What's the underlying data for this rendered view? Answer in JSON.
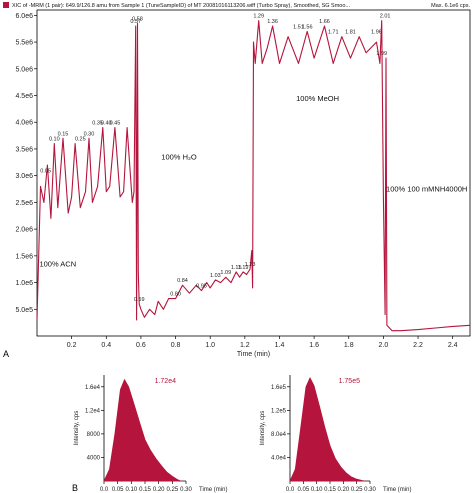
{
  "header": {
    "text": "XIC of -MRM (1 pair): 649.9/126.8 amu from Sample 1 (TuneSampleID) of MT 20081016113206.wiff (Turbo Spray), Smoothed, SG Smoo...",
    "max_text": "Max. 6.1e6 cps."
  },
  "panel_labels": {
    "a": "A",
    "b": "B"
  },
  "colors": {
    "trace": "#b5143c",
    "fill": "#b5143c",
    "axis": "#000000",
    "legend_square": "#b5143c"
  },
  "chart_data": [
    {
      "type": "line",
      "xlabel": "Time (min)",
      "ylabel": "",
      "xlim": [
        0,
        2.5
      ],
      "ylim": [
        0,
        6100000
      ],
      "x_ticks": [
        0.2,
        0.4,
        0.6,
        0.8,
        1.0,
        1.2,
        1.4,
        1.6,
        1.8,
        2.0,
        2.2,
        2.4
      ],
      "x_tick_labels": [
        "0.2",
        "0.4",
        "0.6",
        "0.8",
        "1.0",
        "1.2",
        "1.4",
        "1.6",
        "1.8",
        "2.0",
        "2.2",
        "2.4"
      ],
      "y_ticks": [
        500000,
        1000000,
        1500000,
        2000000,
        2500000,
        3000000,
        3500000,
        4000000,
        4500000,
        5000000,
        5500000,
        6000000
      ],
      "y_tick_labels": [
        "5.0e5",
        "1.0e6",
        "1.5e6",
        "2.0e6",
        "2.5e6",
        "3.0e6",
        "3.5e6",
        "4.0e6",
        "4.5e6",
        "5.0e6",
        "5.5e6",
        "6.0e6"
      ],
      "series": [
        {
          "x": [
            0.0,
            0.02,
            0.04,
            0.06,
            0.08,
            0.1,
            0.12,
            0.15,
            0.18,
            0.2,
            0.22,
            0.25,
            0.28,
            0.3,
            0.32,
            0.35,
            0.38,
            0.4,
            0.42,
            0.45,
            0.48,
            0.5,
            0.52,
            0.55,
            0.56,
            0.57,
            0.575,
            0.58,
            0.585,
            0.59,
            0.6,
            0.62,
            0.65,
            0.68,
            0.7,
            0.73,
            0.76,
            0.8,
            0.84,
            0.88,
            0.92,
            0.95,
            0.98,
            1.0,
            1.03,
            1.06,
            1.09,
            1.12,
            1.15,
            1.17,
            1.19,
            1.21,
            1.23,
            1.24,
            1.245,
            1.25,
            1.26,
            1.28,
            1.3,
            1.33,
            1.36,
            1.4,
            1.45,
            1.51,
            1.56,
            1.6,
            1.66,
            1.71,
            1.76,
            1.81,
            1.86,
            1.9,
            1.96,
            1.98,
            1.99,
            2.0,
            2.01,
            2.015,
            2.02,
            2.05,
            2.1,
            2.2,
            2.3,
            2.4,
            2.5
          ],
          "y": [
            300000,
            2800000,
            2500000,
            3200000,
            2200000,
            3600000,
            2400000,
            3700000,
            2300000,
            2600000,
            3600000,
            2400000,
            2700000,
            3700000,
            2500000,
            2800000,
            3900000,
            2700000,
            2800000,
            3900000,
            2600000,
            2700000,
            3900000,
            2500000,
            2700000,
            5800000,
            300000,
            5850000,
            1200000,
            600000,
            500000,
            350000,
            500000,
            400000,
            650000,
            500000,
            700000,
            700000,
            950000,
            800000,
            950000,
            850000,
            1000000,
            900000,
            1050000,
            1000000,
            1100000,
            1000000,
            1200000,
            1100000,
            1200000,
            1150000,
            1250000,
            1600000,
            900000,
            5500000,
            5100000,
            5900000,
            5100000,
            5400000,
            5800000,
            5100000,
            5600000,
            5100000,
            5700000,
            5200000,
            5800000,
            5100000,
            5600000,
            5200000,
            5600000,
            5300000,
            5500000,
            5100000,
            5900000,
            2600000,
            400000,
            5200000,
            200000,
            100000,
            100000,
            120000,
            150000,
            180000,
            200000
          ]
        }
      ],
      "peak_labels": [
        {
          "text": "0.05",
          "x": 0.05,
          "y": 3000000
        },
        {
          "text": "0.10",
          "x": 0.1,
          "y": 3600000
        },
        {
          "text": "0.15",
          "x": 0.15,
          "y": 3700000
        },
        {
          "text": "0.25",
          "x": 0.25,
          "y": 3600000
        },
        {
          "text": "0.30",
          "x": 0.3,
          "y": 3700000
        },
        {
          "text": "0.35",
          "x": 0.35,
          "y": 3900000
        },
        {
          "text": "0.40",
          "x": 0.4,
          "y": 3900000
        },
        {
          "text": "0.45",
          "x": 0.45,
          "y": 3900000
        },
        {
          "text": "0.57",
          "x": 0.57,
          "y": 5800000
        },
        {
          "text": "0.58",
          "x": 0.58,
          "y": 5850000
        },
        {
          "text": "0.59",
          "x": 0.59,
          "y": 600000
        },
        {
          "text": "0.80",
          "x": 0.8,
          "y": 700000
        },
        {
          "text": "0.84",
          "x": 0.84,
          "y": 950000
        },
        {
          "text": "0.95",
          "x": 0.95,
          "y": 850000
        },
        {
          "text": "1.03",
          "x": 1.03,
          "y": 1050000
        },
        {
          "text": "1.09",
          "x": 1.09,
          "y": 1100000
        },
        {
          "text": "1.15",
          "x": 1.15,
          "y": 1200000
        },
        {
          "text": "1.19",
          "x": 1.19,
          "y": 1200000
        },
        {
          "text": "1.23",
          "x": 1.23,
          "y": 1250000
        },
        {
          "text": "1.29",
          "x": 1.28,
          "y": 5900000
        },
        {
          "text": "1.36",
          "x": 1.36,
          "y": 5800000
        },
        {
          "text": "1.51",
          "x": 1.51,
          "y": 5700000
        },
        {
          "text": "1.56",
          "x": 1.56,
          "y": 5700000
        },
        {
          "text": "1.66",
          "x": 1.66,
          "y": 5800000
        },
        {
          "text": "1.71",
          "x": 1.71,
          "y": 5600000
        },
        {
          "text": "1.81",
          "x": 1.81,
          "y": 5600000
        },
        {
          "text": "1.96",
          "x": 1.96,
          "y": 5600000
        },
        {
          "text": "2.01",
          "x": 2.01,
          "y": 5900000
        },
        {
          "text": "1.99",
          "x": 1.99,
          "y": 5200000
        }
      ],
      "annotations": [
        {
          "text": "100% ACN",
          "x": 0.12,
          "y": 1300000
        },
        {
          "text": "100% H₂O",
          "x": 0.82,
          "y": 3300000
        },
        {
          "text": "100% MeOH",
          "x": 1.62,
          "y": 4400000
        },
        {
          "text": "100% 100 mMNH4000H",
          "x": 2.25,
          "y": 2700000
        }
      ]
    },
    {
      "type": "area",
      "xlabel": "Time (min)",
      "ylabel": "Intensity, cps",
      "xlim": [
        0,
        0.3
      ],
      "ylim": [
        0,
        18000
      ],
      "x_ticks": [
        0.0,
        0.05,
        0.1,
        0.15,
        0.2,
        0.25,
        0.3
      ],
      "x_tick_labels": [
        "0.0",
        "0.05",
        "0.10",
        "0.15",
        "0.20",
        "0.25",
        "0.30"
      ],
      "y_ticks": [
        4000,
        8000,
        12000,
        16000
      ],
      "y_tick_labels": [
        "4000",
        "8000",
        "1.2e4",
        "1.6e4"
      ],
      "series": [
        {
          "x": [
            0.0,
            0.02,
            0.04,
            0.06,
            0.075,
            0.09,
            0.11,
            0.13,
            0.15,
            0.17,
            0.19,
            0.21,
            0.23,
            0.25,
            0.27,
            0.28
          ],
          "y": [
            0,
            2000,
            8000,
            15500,
            17200,
            16000,
            13000,
            10000,
            7000,
            5200,
            3800,
            2600,
            1500,
            800,
            200,
            0
          ]
        }
      ],
      "data_label": "1.72e4"
    },
    {
      "type": "area",
      "xlabel": "Time (min)",
      "ylabel": "Intensity, cps",
      "xlim": [
        0,
        0.3
      ],
      "ylim": [
        0,
        180000
      ],
      "x_ticks": [
        0.0,
        0.05,
        0.1,
        0.15,
        0.2,
        0.25,
        0.3
      ],
      "x_tick_labels": [
        "0.0",
        "0.05",
        "0.10",
        "0.15",
        "0.20",
        "0.25",
        "0.30"
      ],
      "y_ticks": [
        40000,
        80000,
        120000,
        160000
      ],
      "y_tick_labels": [
        "4.0e4",
        "8.0e4",
        "1.2e5",
        "1.6e5"
      ],
      "series": [
        {
          "x": [
            0.0,
            0.02,
            0.04,
            0.06,
            0.075,
            0.09,
            0.11,
            0.13,
            0.15,
            0.17,
            0.19,
            0.21,
            0.23,
            0.25,
            0.27,
            0.28
          ],
          "y": [
            0,
            20000,
            90000,
            160000,
            175000,
            162000,
            128000,
            92000,
            60000,
            38000,
            24000,
            14000,
            7000,
            3000,
            800,
            0
          ]
        }
      ],
      "data_label": "1.75e5"
    }
  ]
}
